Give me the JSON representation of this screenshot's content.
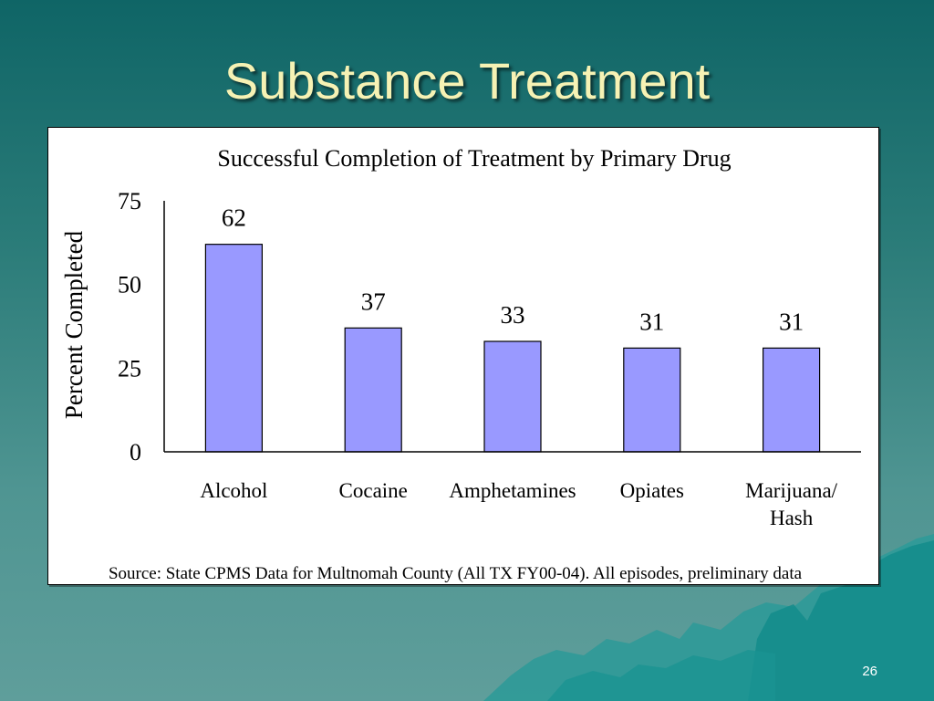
{
  "slide": {
    "title": "Substance Treatment",
    "page_number": "26"
  },
  "chart_data": {
    "type": "bar",
    "title": "Successful Completion of Treatment by Primary Drug",
    "xlabel": "",
    "ylabel": "Percent Completed",
    "categories": [
      [
        "Alcohol"
      ],
      [
        "Cocaine"
      ],
      [
        "Amphetamines"
      ],
      [
        "Opiates"
      ],
      [
        "Marijuana/",
        "Hash"
      ]
    ],
    "values": [
      62,
      37,
      33,
      31,
      31
    ],
    "data_labels": [
      "62",
      "37",
      "33",
      "31",
      "31"
    ],
    "ylim": [
      0,
      75
    ],
    "yticks": [
      "0",
      "25",
      "50",
      "75"
    ],
    "grid": false,
    "legend": "none",
    "source": "Source: State CPMS Data for Multnomah County (All TX FY00-04). All episodes, preliminary data",
    "colors": {
      "bar_fill": "#9999ff",
      "bar_stroke": "#000000"
    }
  }
}
